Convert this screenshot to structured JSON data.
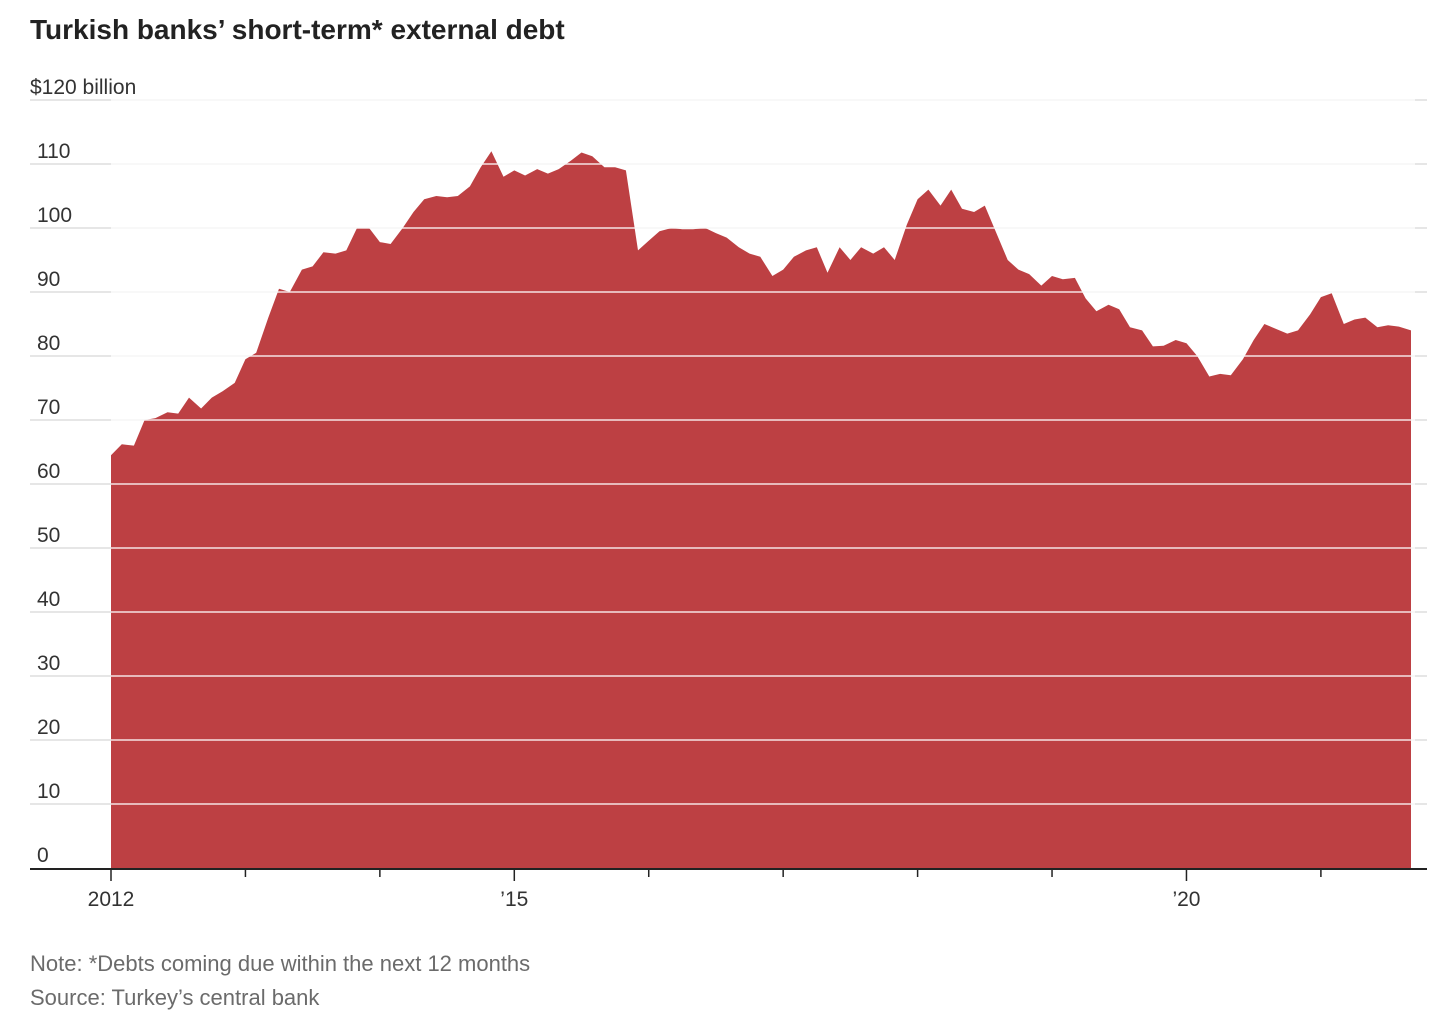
{
  "chart_data": {
    "type": "area",
    "title": "Turkish banks’ short-term* external debt",
    "ylabel": "$120 billion",
    "ylim": [
      0,
      120
    ],
    "y_ticks": [
      {
        "value": 120,
        "label": "$120 billion"
      },
      {
        "value": 110,
        "label": "110"
      },
      {
        "value": 100,
        "label": "100"
      },
      {
        "value": 90,
        "label": "90"
      },
      {
        "value": 80,
        "label": "80"
      },
      {
        "value": 70,
        "label": "70"
      },
      {
        "value": 60,
        "label": "60"
      },
      {
        "value": 50,
        "label": "50"
      },
      {
        "value": 40,
        "label": "40"
      },
      {
        "value": 30,
        "label": "30"
      },
      {
        "value": 20,
        "label": "20"
      },
      {
        "value": 10,
        "label": "10"
      },
      {
        "value": 0,
        "label": "0"
      }
    ],
    "x_labels": [
      {
        "value": 2012,
        "label": "2012"
      },
      {
        "value": 2015,
        "label": "’15"
      },
      {
        "value": 2020,
        "label": "’20"
      }
    ],
    "x_minor_ticks": [
      2013,
      2014,
      2016,
      2017,
      2018,
      2019,
      2021
    ],
    "xlim": [
      2012,
      2021.7
    ],
    "grid": true,
    "fill_color": "#bd4043",
    "series": [
      {
        "values": [
          [
            2012.0,
            64.5
          ],
          [
            2012.08,
            66.2
          ],
          [
            2012.17,
            66.0
          ],
          [
            2012.25,
            70.0
          ],
          [
            2012.33,
            70.3
          ],
          [
            2012.42,
            71.2
          ],
          [
            2012.5,
            71.0
          ],
          [
            2012.58,
            73.5
          ],
          [
            2012.67,
            71.8
          ],
          [
            2012.75,
            73.5
          ],
          [
            2012.83,
            74.5
          ],
          [
            2012.92,
            75.8
          ],
          [
            2013.0,
            79.5
          ],
          [
            2013.08,
            80.5
          ],
          [
            2013.17,
            86.0
          ],
          [
            2013.25,
            90.5
          ],
          [
            2013.33,
            90.0
          ],
          [
            2013.42,
            93.5
          ],
          [
            2013.5,
            94.0
          ],
          [
            2013.58,
            96.2
          ],
          [
            2013.67,
            96.0
          ],
          [
            2013.75,
            96.5
          ],
          [
            2013.83,
            100.0
          ],
          [
            2013.92,
            100.0
          ],
          [
            2014.0,
            97.8
          ],
          [
            2014.08,
            97.5
          ],
          [
            2014.17,
            100.0
          ],
          [
            2014.25,
            102.5
          ],
          [
            2014.33,
            104.5
          ],
          [
            2014.42,
            105.0
          ],
          [
            2014.5,
            104.8
          ],
          [
            2014.58,
            105.0
          ],
          [
            2014.67,
            106.5
          ],
          [
            2014.75,
            109.5
          ],
          [
            2014.83,
            112.0
          ],
          [
            2014.92,
            108.0
          ],
          [
            2015.0,
            109.0
          ],
          [
            2015.08,
            108.2
          ],
          [
            2015.17,
            109.2
          ],
          [
            2015.25,
            108.5
          ],
          [
            2015.33,
            109.2
          ],
          [
            2015.42,
            110.5
          ],
          [
            2015.5,
            111.8
          ],
          [
            2015.58,
            111.2
          ],
          [
            2015.67,
            109.5
          ],
          [
            2015.75,
            109.5
          ],
          [
            2015.83,
            109.0
          ],
          [
            2015.92,
            96.5
          ],
          [
            2016.0,
            98.0
          ],
          [
            2016.08,
            99.5
          ],
          [
            2016.17,
            100.0
          ],
          [
            2016.25,
            99.8
          ],
          [
            2016.33,
            99.8
          ],
          [
            2016.42,
            100.0
          ],
          [
            2016.5,
            99.2
          ],
          [
            2016.58,
            98.5
          ],
          [
            2016.67,
            97.0
          ],
          [
            2016.75,
            96.0
          ],
          [
            2016.83,
            95.5
          ],
          [
            2016.92,
            92.5
          ],
          [
            2017.0,
            93.5
          ],
          [
            2017.08,
            95.5
          ],
          [
            2017.17,
            96.5
          ],
          [
            2017.25,
            97.0
          ],
          [
            2017.33,
            93.0
          ],
          [
            2017.42,
            97.0
          ],
          [
            2017.5,
            95.0
          ],
          [
            2017.58,
            97.0
          ],
          [
            2017.67,
            96.0
          ],
          [
            2017.75,
            97.0
          ],
          [
            2017.83,
            95.0
          ],
          [
            2017.92,
            100.5
          ],
          [
            2018.0,
            104.5
          ],
          [
            2018.08,
            106.0
          ],
          [
            2018.17,
            103.5
          ],
          [
            2018.25,
            106.0
          ],
          [
            2018.33,
            103.0
          ],
          [
            2018.42,
            102.5
          ],
          [
            2018.5,
            103.5
          ],
          [
            2018.58,
            99.5
          ],
          [
            2018.67,
            95.0
          ],
          [
            2018.75,
            93.5
          ],
          [
            2018.83,
            92.8
          ],
          [
            2018.92,
            91.0
          ],
          [
            2019.0,
            92.5
          ],
          [
            2019.08,
            92.0
          ],
          [
            2019.17,
            92.2
          ],
          [
            2019.25,
            89.0
          ],
          [
            2019.33,
            87.0
          ],
          [
            2019.42,
            88.0
          ],
          [
            2019.5,
            87.3
          ],
          [
            2019.58,
            84.5
          ],
          [
            2019.67,
            84.0
          ],
          [
            2019.75,
            81.5
          ],
          [
            2019.83,
            81.6
          ],
          [
            2019.92,
            82.5
          ],
          [
            2020.0,
            82.0
          ],
          [
            2020.08,
            80.0
          ],
          [
            2020.17,
            76.8
          ],
          [
            2020.25,
            77.2
          ],
          [
            2020.33,
            77.0
          ],
          [
            2020.42,
            79.5
          ],
          [
            2020.5,
            82.5
          ],
          [
            2020.58,
            85.0
          ],
          [
            2020.67,
            84.2
          ],
          [
            2020.75,
            83.5
          ],
          [
            2020.83,
            84.0
          ],
          [
            2020.92,
            86.5
          ],
          [
            2021.0,
            89.2
          ],
          [
            2021.08,
            89.8
          ],
          [
            2021.17,
            85.0
          ],
          [
            2021.25,
            85.7
          ],
          [
            2021.33,
            86.0
          ],
          [
            2021.42,
            84.5
          ],
          [
            2021.5,
            84.8
          ],
          [
            2021.58,
            84.6
          ],
          [
            2021.67,
            84.0
          ]
        ]
      }
    ],
    "note": "Note: *Debts coming due within the next 12 months",
    "source": "Source: Turkey’s central bank"
  }
}
